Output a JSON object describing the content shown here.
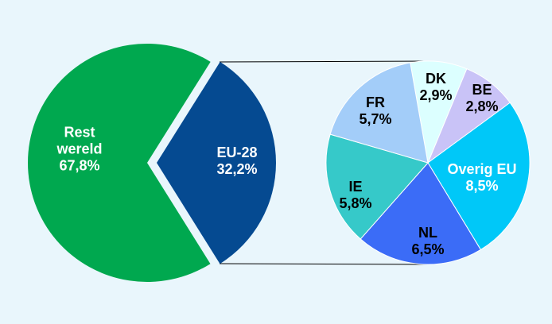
{
  "chart_data": [
    {
      "type": "pie",
      "categories": [
        "Rest wereld",
        "EU-28"
      ],
      "values": [
        67.8,
        32.2
      ],
      "value_labels": [
        "67,8%",
        "32,2%"
      ],
      "colors": [
        "#00a84f",
        "#054a91"
      ]
    },
    {
      "type": "pie",
      "categories": [
        "DK",
        "BE",
        "Overig EU",
        "NL",
        "IE",
        "FR"
      ],
      "values": [
        2.9,
        2.8,
        8.5,
        6.5,
        5.8,
        5.7
      ],
      "value_labels": [
        "2,9%",
        "2,8%",
        "8,5%",
        "6,5%",
        "5,8%",
        "5,7%"
      ],
      "colors": [
        "#dcffff",
        "#c9c3f7",
        "#00c8f8",
        "#3b6cf7",
        "#36c9c9",
        "#a3cdf9"
      ]
    }
  ]
}
